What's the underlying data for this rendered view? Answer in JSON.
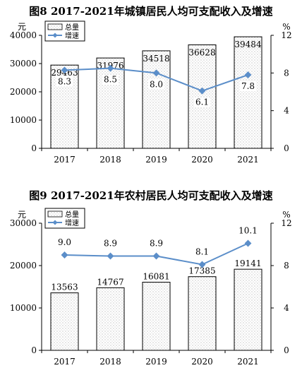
{
  "chart_data": [
    {
      "type": "bar+line",
      "title": "图8 2017-2021年城镇居民人均可支配收入及增速",
      "left_unit": "元",
      "right_unit": "%",
      "categories": [
        "2017",
        "2018",
        "2019",
        "2020",
        "2021"
      ],
      "left_ticks": [
        "0",
        "10000",
        "20000",
        "30000",
        "40000"
      ],
      "right_ticks": [
        "0",
        "4",
        "8",
        "12"
      ],
      "ylim_left": [
        0,
        40000
      ],
      "ylim_right": [
        0,
        12
      ],
      "legend": {
        "bar_label": "总量",
        "line_label": "增速",
        "placement": "top-left"
      },
      "series": [
        {
          "name": "总量",
          "type": "bar",
          "axis": "left",
          "values": [
            29463,
            31976,
            34518,
            36628,
            39484
          ],
          "labels": [
            "29463",
            "31976",
            "34518",
            "36628",
            "39484"
          ]
        },
        {
          "name": "增速",
          "type": "line",
          "axis": "right",
          "values": [
            8.3,
            8.5,
            8.0,
            6.1,
            7.8
          ],
          "labels": [
            "8.3",
            "8.5",
            "8.0",
            "6.1",
            "7.8"
          ]
        }
      ],
      "colors": {
        "line": "#5b8ec9",
        "bar_border": "#000000"
      }
    },
    {
      "type": "bar+line",
      "title": "图9 2017-2021年农村居民人均可支配收入及增速",
      "left_unit": "元",
      "right_unit": "%",
      "categories": [
        "2017",
        "2018",
        "2019",
        "2020",
        "2021"
      ],
      "left_ticks": [
        "0",
        "10000",
        "20000",
        "30000"
      ],
      "right_ticks": [
        "0",
        "4",
        "8",
        "12"
      ],
      "ylim_left": [
        0,
        30000
      ],
      "ylim_right": [
        0,
        12
      ],
      "legend": {
        "bar_label": "总量",
        "line_label": "增速",
        "placement": "top-left"
      },
      "series": [
        {
          "name": "总量",
          "type": "bar",
          "axis": "left",
          "values": [
            13563,
            14767,
            16081,
            17385,
            19141
          ],
          "labels": [
            "13563",
            "14767",
            "16081",
            "17385",
            "19141"
          ]
        },
        {
          "name": "增速",
          "type": "line",
          "axis": "right",
          "values": [
            9.0,
            8.9,
            8.9,
            8.1,
            10.1
          ],
          "labels": [
            "9.0",
            "8.9",
            "8.9",
            "8.1",
            "10.1"
          ]
        }
      ],
      "colors": {
        "line": "#5b8ec9",
        "bar_border": "#000000"
      }
    }
  ]
}
